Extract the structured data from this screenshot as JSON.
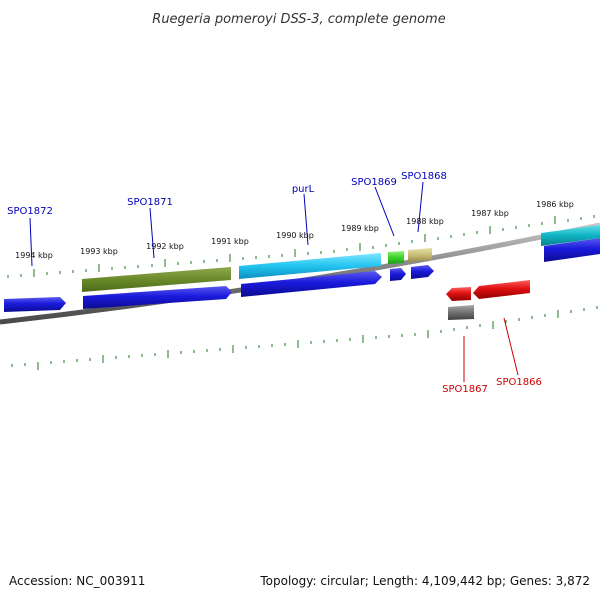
{
  "title": "Ruegeria pomeroyi DSS-3, complete genome",
  "footer": {
    "accession": "Accession: NC_003911",
    "topology": "Topology: circular; Length: 4,109,442 bp; Genes: 3,872"
  },
  "kbp_labels": [
    "1994 kbp",
    "1993 kbp",
    "1992 kbp",
    "1991 kbp",
    "1990 kbp",
    "1989 kbp",
    "1988 kbp",
    "1987 kbp",
    "1986 kbp"
  ],
  "gene_labels": [
    {
      "id": "spo1872",
      "text": "SPO1872",
      "strand": "forward"
    },
    {
      "id": "spo1871",
      "text": "SPO1871",
      "strand": "forward"
    },
    {
      "id": "purl",
      "text": "purL",
      "strand": "forward"
    },
    {
      "id": "spo1869",
      "text": "SPO1869",
      "strand": "forward"
    },
    {
      "id": "spo1868",
      "text": "SPO1868",
      "strand": "forward"
    },
    {
      "id": "spo1867",
      "text": "SPO1867",
      "strand": "reverse"
    },
    {
      "id": "spo1866",
      "text": "SPO1866",
      "strand": "reverse"
    }
  ],
  "colors": {
    "forward_label": "#0000bb",
    "reverse_label": "#cc0000",
    "forward_gene": "#1a1adc",
    "reverse_gene": "#e01010",
    "tick": "#1f7a1f",
    "backbone": "#808080"
  }
}
